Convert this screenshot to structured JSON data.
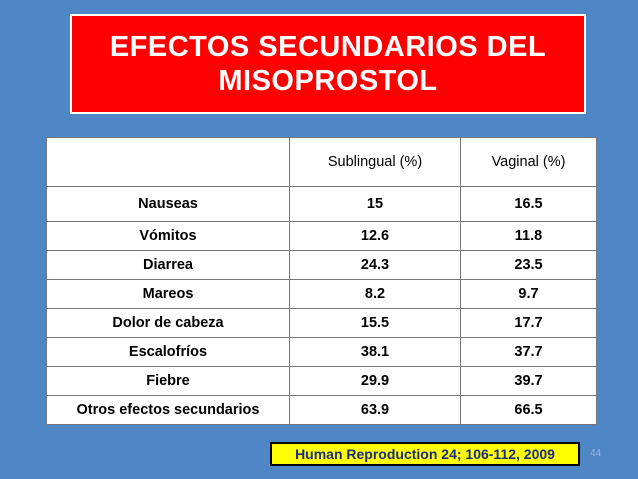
{
  "slide": {
    "title_line1": "EFECTOS SECUNDARIOS DEL",
    "title_line2": "MISOPROSTOL",
    "background_color": "#4f86c6",
    "title_background_color": "#ff0000"
  },
  "table": {
    "headers": [
      "",
      "Sublingual (%)",
      "Vaginal (%)"
    ],
    "rows": [
      {
        "label": "Nauseas",
        "sublingual": "15",
        "vaginal": "16.5"
      },
      {
        "label": "Vómitos",
        "sublingual": "12.6",
        "vaginal": "11.8"
      },
      {
        "label": "Diarrea",
        "sublingual": "24.3",
        "vaginal": "23.5"
      },
      {
        "label": "Mareos",
        "sublingual": "8.2",
        "vaginal": "9.7"
      },
      {
        "label": "Dolor de cabeza",
        "sublingual": "15.5",
        "vaginal": "17.7"
      },
      {
        "label": "Escalofríos",
        "sublingual": "38.1",
        "vaginal": "37.7"
      },
      {
        "label": "Fiebre",
        "sublingual": "29.9",
        "vaginal": "39.7"
      },
      {
        "label": "Otros efectos secundarios",
        "sublingual": "63.9",
        "vaginal": "66.5"
      }
    ]
  },
  "citation": {
    "text": "Human Reproduction 24; 106-112, 2009",
    "background_color": "#ffff00",
    "text_color": "#1a2a8a"
  },
  "page_number": "44"
}
